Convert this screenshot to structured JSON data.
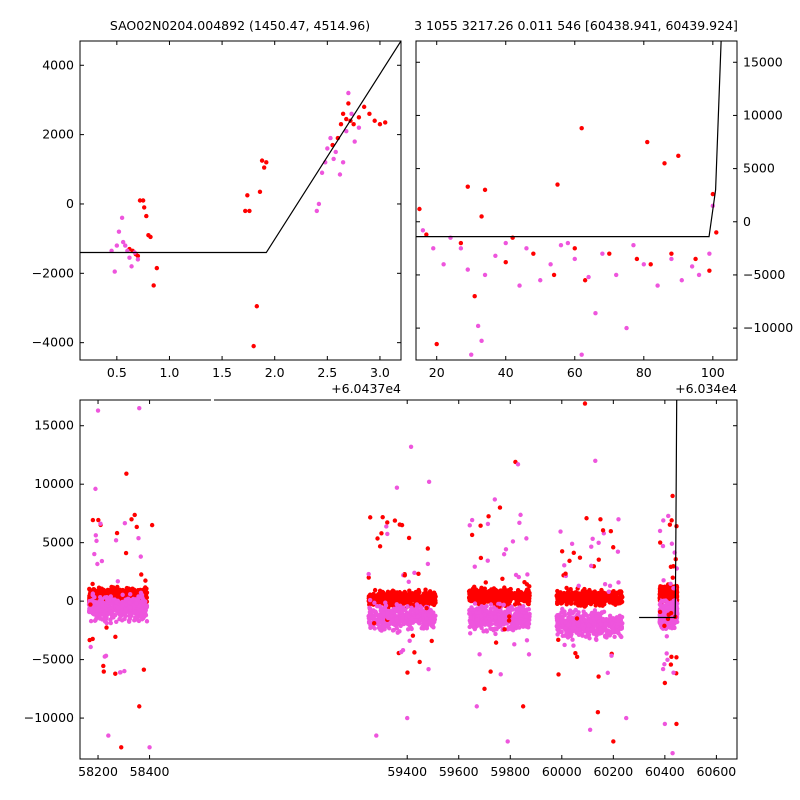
{
  "titles": {
    "left": "SAO02N0204.004892 (1450.47, 4514.96)",
    "right": "3 1055 3217.26 0.011 546 [60438.941, 60439.924]"
  },
  "colors": {
    "red": "#ff0000",
    "magenta": "#ee55dd",
    "line": "#000000"
  },
  "chart_data": [
    {
      "id": "top-left",
      "type": "scatter",
      "x_offset_label": "+6.0437e4",
      "xlim": [
        0.15,
        3.2
      ],
      "ylim": [
        -4500,
        4700
      ],
      "xticks": [
        0.5,
        1.0,
        1.5,
        2.0,
        2.5,
        3.0
      ],
      "xtick_labels": [
        "0.5",
        "1.0",
        "1.5",
        "2.0",
        "2.5",
        "3.0"
      ],
      "yticks": [
        -4000,
        -2000,
        0,
        2000,
        4000
      ],
      "ytick_labels": [
        "−4000",
        "−2000",
        "0",
        "2000",
        "4000"
      ],
      "model_line": {
        "x": [
          0.15,
          1.92,
          3.2
        ],
        "y": [
          -1400,
          -1400,
          4700
        ]
      },
      "series": [
        {
          "color": "red",
          "points": [
            [
              0.62,
              -1300
            ],
            [
              0.65,
              -1350
            ],
            [
              0.68,
              -1450
            ],
            [
              0.7,
              -1500
            ],
            [
              0.72,
              100
            ],
            [
              0.75,
              100
            ],
            [
              0.76,
              -100
            ],
            [
              0.78,
              -350
            ],
            [
              0.8,
              -900
            ],
            [
              0.82,
              -950
            ],
            [
              0.85,
              -2350
            ],
            [
              0.88,
              -1850
            ],
            [
              1.72,
              -200
            ],
            [
              1.74,
              250
            ],
            [
              1.76,
              -200
            ],
            [
              1.8,
              -4100
            ],
            [
              1.83,
              -2950
            ],
            [
              1.86,
              350
            ],
            [
              1.88,
              1250
            ],
            [
              1.9,
              1050
            ],
            [
              1.92,
              1200
            ],
            [
              2.55,
              1700
            ],
            [
              2.6,
              1900
            ],
            [
              2.63,
              2300
            ],
            [
              2.65,
              2600
            ],
            [
              2.68,
              2450
            ],
            [
              2.7,
              2900
            ],
            [
              2.72,
              2400
            ],
            [
              2.75,
              2300
            ],
            [
              2.8,
              2500
            ],
            [
              2.85,
              2800
            ],
            [
              2.9,
              2600
            ],
            [
              2.95,
              2400
            ],
            [
              3.0,
              2300
            ],
            [
              3.05,
              2350
            ]
          ]
        },
        {
          "color": "magenta",
          "points": [
            [
              0.45,
              -1350
            ],
            [
              0.48,
              -1950
            ],
            [
              0.5,
              -1200
            ],
            [
              0.52,
              -800
            ],
            [
              0.55,
              -400
            ],
            [
              0.56,
              -1100
            ],
            [
              0.58,
              -1200
            ],
            [
              0.6,
              -1350
            ],
            [
              0.62,
              -1550
            ],
            [
              0.64,
              -1800
            ],
            [
              0.67,
              -1400
            ],
            [
              0.7,
              -1600
            ],
            [
              2.4,
              -200
            ],
            [
              2.42,
              0
            ],
            [
              2.45,
              900
            ],
            [
              2.48,
              1200
            ],
            [
              2.5,
              1600
            ],
            [
              2.53,
              1900
            ],
            [
              2.56,
              1300
            ],
            [
              2.58,
              1500
            ],
            [
              2.62,
              850
            ],
            [
              2.65,
              1200
            ],
            [
              2.68,
              2100
            ],
            [
              2.7,
              3200
            ],
            [
              2.73,
              2600
            ],
            [
              2.76,
              1800
            ],
            [
              2.8,
              2200
            ]
          ]
        }
      ]
    },
    {
      "id": "top-right",
      "type": "scatter",
      "x_offset_label": "+6.034e4",
      "xlim": [
        14,
        107
      ],
      "ylim": [
        -13000,
        17000
      ],
      "xticks": [
        20,
        40,
        60,
        80,
        100
      ],
      "xtick_labels": [
        "20",
        "40",
        "60",
        "80",
        "100"
      ],
      "yticks": [
        -10000,
        -5000,
        0,
        5000,
        10000,
        15000
      ],
      "ytick_labels": [
        "−10000",
        "−5000",
        "0",
        "5000",
        "10000",
        "15000"
      ],
      "model_line": {
        "x": [
          14,
          98.9,
          100.8,
          102.4
        ],
        "y": [
          -1400,
          -1400,
          3000,
          17000
        ]
      },
      "series": [
        {
          "color": "red",
          "points": [
            [
              15,
              1200
            ],
            [
              17,
              -1200
            ],
            [
              20,
              -11500
            ],
            [
              27,
              -2000
            ],
            [
              29,
              3300
            ],
            [
              31,
              -7000
            ],
            [
              33,
              500
            ],
            [
              34,
              3000
            ],
            [
              40,
              -3800
            ],
            [
              42,
              -1500
            ],
            [
              48,
              -3000
            ],
            [
              54,
              -5000
            ],
            [
              55,
              3500
            ],
            [
              60,
              -2500
            ],
            [
              62,
              8800
            ],
            [
              63,
              -5500
            ],
            [
              70,
              -3000
            ],
            [
              78,
              -3500
            ],
            [
              81,
              7500
            ],
            [
              82,
              -4000
            ],
            [
              86,
              5500
            ],
            [
              88,
              -3000
            ],
            [
              90,
              6200
            ],
            [
              95,
              -3500
            ],
            [
              99,
              -4600
            ],
            [
              100,
              2600
            ],
            [
              101,
              -1000
            ]
          ]
        },
        {
          "color": "magenta",
          "points": [
            [
              16,
              -800
            ],
            [
              19,
              -2500
            ],
            [
              22,
              -4000
            ],
            [
              24,
              -1500
            ],
            [
              27,
              -2500
            ],
            [
              29,
              -4500
            ],
            [
              30,
              -12500
            ],
            [
              32,
              -9800
            ],
            [
              33,
              -11200
            ],
            [
              34,
              -5000
            ],
            [
              37,
              -3200
            ],
            [
              40,
              -2000
            ],
            [
              44,
              -6000
            ],
            [
              46,
              -2500
            ],
            [
              50,
              -5500
            ],
            [
              53,
              -4000
            ],
            [
              56,
              -2200
            ],
            [
              58,
              -2000
            ],
            [
              60,
              -3500
            ],
            [
              62,
              -12500
            ],
            [
              64,
              -5200
            ],
            [
              66,
              -8600
            ],
            [
              68,
              -3000
            ],
            [
              72,
              -5000
            ],
            [
              75,
              -10000
            ],
            [
              77,
              -2200
            ],
            [
              80,
              -4000
            ],
            [
              84,
              -6000
            ],
            [
              88,
              -3500
            ],
            [
              91,
              -5500
            ],
            [
              94,
              -4200
            ],
            [
              96,
              -5000
            ],
            [
              99,
              -3000
            ],
            [
              100,
              1500
            ]
          ]
        }
      ]
    },
    {
      "id": "bottom",
      "type": "scatter",
      "xlim": [
        58130,
        60680
      ],
      "ylim": [
        -13500,
        17200
      ],
      "xticks": [
        58200,
        58400,
        59400,
        59600,
        59800,
        60000,
        60200,
        60400,
        60600
      ],
      "xtick_labels": [
        "58200",
        "58400",
        "59400",
        "59600",
        "59800",
        "60000",
        "60200",
        "60400",
        "60600"
      ],
      "yticks": [
        -10000,
        -5000,
        0,
        5000,
        10000,
        15000
      ],
      "ytick_labels": [
        "−10000",
        "−5000",
        "0",
        "5000",
        "10000",
        "15000"
      ],
      "model_line": {
        "x": [
          60300,
          60440,
          60442,
          60446
        ],
        "y": [
          -1400,
          -1400,
          3000,
          17200
        ]
      },
      "clusters": [
        {
          "x": [
            58165,
            58390
          ],
          "red_mean": 500,
          "magenta_mean": -600
        },
        {
          "x": [
            59250,
            59510
          ],
          "red_mean": 200,
          "magenta_mean": -1400
        },
        {
          "x": [
            59640,
            59875
          ],
          "red_mean": 400,
          "magenta_mean": -1400
        },
        {
          "x": [
            59980,
            60235
          ],
          "red_mean": 300,
          "magenta_mean": -2000
        },
        {
          "x": [
            60380,
            60448
          ],
          "red_mean": 600,
          "magenta_mean": -1200
        }
      ],
      "outliers": {
        "red": [
          [
            58310,
            10900
          ],
          [
            58330,
            7000
          ],
          [
            58410,
            6500
          ],
          [
            58290,
            -12500
          ],
          [
            58360,
            -9000
          ],
          [
            59300,
            5800
          ],
          [
            59380,
            6500
          ],
          [
            59480,
            4500
          ],
          [
            59760,
            8000
          ],
          [
            59820,
            11900
          ],
          [
            59700,
            -7500
          ],
          [
            59850,
            -9000
          ],
          [
            60090,
            16900
          ],
          [
            60150,
            7000
          ],
          [
            60140,
            -9500
          ],
          [
            60200,
            -12000
          ],
          [
            60430,
            9000
          ],
          [
            60400,
            -7000
          ],
          [
            60445,
            -10500
          ],
          [
            60445,
            -4800
          ]
        ],
        "magenta": [
          [
            58200,
            16300
          ],
          [
            58360,
            16500
          ],
          [
            58190,
            9600
          ],
          [
            58270,
            5200
          ],
          [
            58240,
            -11500
          ],
          [
            58400,
            -12500
          ],
          [
            59415,
            13200
          ],
          [
            59360,
            9700
          ],
          [
            59485,
            10200
          ],
          [
            59280,
            -11500
          ],
          [
            59400,
            -10000
          ],
          [
            59740,
            8700
          ],
          [
            59830,
            11700
          ],
          [
            59670,
            -9000
          ],
          [
            59790,
            -12000
          ],
          [
            60130,
            12000
          ],
          [
            60040,
            4900
          ],
          [
            60220,
            7000
          ],
          [
            60110,
            -11000
          ],
          [
            60250,
            -10000
          ],
          [
            60400,
            -10500
          ],
          [
            60430,
            -13000
          ]
        ]
      }
    }
  ]
}
